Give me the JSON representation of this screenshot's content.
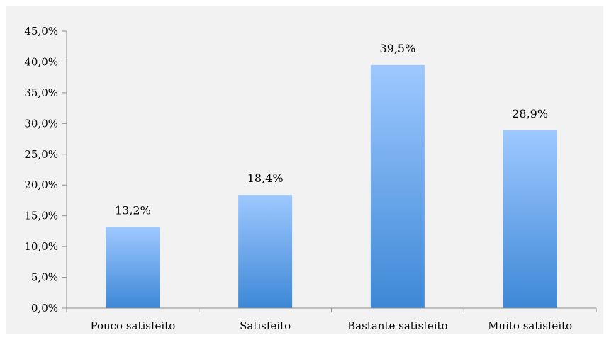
{
  "chart_data": {
    "type": "bar",
    "categories": [
      "Pouco satisfeito",
      "Satisfeito",
      "Bastante satisfeito",
      "Muito satisfeito"
    ],
    "values": [
      13.2,
      18.4,
      39.5,
      28.9
    ],
    "value_labels": [
      "13,2%",
      "18,4%",
      "39,5%",
      "28,9%"
    ],
    "ylim": [
      0,
      45
    ],
    "yticks": [
      0,
      5,
      10,
      15,
      20,
      25,
      30,
      35,
      40,
      45
    ],
    "ytick_labels": [
      "0,0%",
      "5,0%",
      "10,0%",
      "15,0%",
      "20,0%",
      "25,0%",
      "30,0%",
      "35,0%",
      "40,0%",
      "45,0%"
    ],
    "title": "",
    "xlabel": "",
    "ylabel": "",
    "grid": false,
    "legend": "none",
    "colors": {
      "bar_top": "#9ec8ff",
      "bar_bottom": "#3d88d6",
      "axis": "#8c8c8c",
      "background": "#f2f2f2"
    }
  }
}
